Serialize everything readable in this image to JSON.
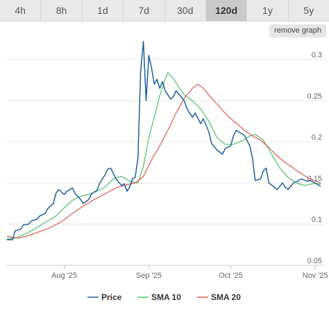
{
  "tabs": [
    {
      "label": "4h",
      "active": false
    },
    {
      "label": "8h",
      "active": false
    },
    {
      "label": "1d",
      "active": false
    },
    {
      "label": "7d",
      "active": false
    },
    {
      "label": "30d",
      "active": false
    },
    {
      "label": "120d",
      "active": true
    },
    {
      "label": "1y",
      "active": false
    },
    {
      "label": "5y",
      "active": false
    }
  ],
  "remove_graph_label": "remove graph",
  "chart_data": {
    "type": "line",
    "ylim": [
      0.05,
      0.32
    ],
    "yticks": [
      0.05,
      0.1,
      0.15,
      0.2,
      0.25,
      0.3
    ],
    "ytick_labels": [
      "0.05",
      "0.1",
      "0.15",
      "0.2",
      "0.25",
      "0.3"
    ],
    "xlim": [
      "2025-07-11",
      "2025-11-04"
    ],
    "xticks": [
      "2025-08-01",
      "2025-09-01",
      "2025-10-01",
      "2025-11-01"
    ],
    "xtick_labels": [
      "Aug '25",
      "Sep '25",
      "Oct '25",
      "Nov '25"
    ],
    "grid": true,
    "legend_position": "bottom",
    "series": [
      {
        "name": "Price",
        "color": "#1f5f99",
        "points": [
          [
            "2025-07-11",
            0.081
          ],
          [
            "2025-07-13",
            0.081
          ],
          [
            "2025-07-14",
            0.092
          ],
          [
            "2025-07-16",
            0.094
          ],
          [
            "2025-07-17",
            0.099
          ],
          [
            "2025-07-19",
            0.1
          ],
          [
            "2025-07-20",
            0.104
          ],
          [
            "2025-07-22",
            0.106
          ],
          [
            "2025-07-23",
            0.11
          ],
          [
            "2025-07-25",
            0.113
          ],
          [
            "2025-07-26",
            0.119
          ],
          [
            "2025-07-28",
            0.125
          ],
          [
            "2025-07-29",
            0.138
          ],
          [
            "2025-07-30",
            0.142
          ],
          [
            "2025-08-01",
            0.136
          ],
          [
            "2025-08-02",
            0.14
          ],
          [
            "2025-08-04",
            0.144
          ],
          [
            "2025-08-05",
            0.137
          ],
          [
            "2025-08-07",
            0.13
          ],
          [
            "2025-08-08",
            0.125
          ],
          [
            "2025-08-10",
            0.13
          ],
          [
            "2025-08-11",
            0.137
          ],
          [
            "2025-08-13",
            0.141
          ],
          [
            "2025-08-14",
            0.15
          ],
          [
            "2025-08-16",
            0.16
          ],
          [
            "2025-08-17",
            0.167
          ],
          [
            "2025-08-18",
            0.168
          ],
          [
            "2025-08-20",
            0.155
          ],
          [
            "2025-08-22",
            0.147
          ],
          [
            "2025-08-23",
            0.149
          ],
          [
            "2025-08-24",
            0.14
          ],
          [
            "2025-08-25",
            0.145
          ],
          [
            "2025-08-26",
            0.155
          ],
          [
            "2025-08-27",
            0.157
          ],
          [
            "2025-08-28",
            0.18
          ],
          [
            "2025-08-29",
            0.285
          ],
          [
            "2025-08-30",
            0.322
          ],
          [
            "2025-08-31",
            0.25
          ],
          [
            "2025-09-01",
            0.305
          ],
          [
            "2025-09-02",
            0.29
          ],
          [
            "2025-09-03",
            0.27
          ],
          [
            "2025-09-04",
            0.276
          ],
          [
            "2025-09-05",
            0.265
          ],
          [
            "2025-09-06",
            0.273
          ],
          [
            "2025-09-07",
            0.262
          ],
          [
            "2025-09-09",
            0.252
          ],
          [
            "2025-09-10",
            0.255
          ],
          [
            "2025-09-11",
            0.262
          ],
          [
            "2025-09-12",
            0.258
          ],
          [
            "2025-09-14",
            0.25
          ],
          [
            "2025-09-15",
            0.24
          ],
          [
            "2025-09-17",
            0.23
          ],
          [
            "2025-09-18",
            0.235
          ],
          [
            "2025-09-20",
            0.222
          ],
          [
            "2025-09-21",
            0.228
          ],
          [
            "2025-09-23",
            0.212
          ],
          [
            "2025-09-24",
            0.198
          ],
          [
            "2025-09-26",
            0.19
          ],
          [
            "2025-09-28",
            0.185
          ],
          [
            "2025-09-29",
            0.192
          ],
          [
            "2025-10-01",
            0.195
          ],
          [
            "2025-10-02",
            0.207
          ],
          [
            "2025-10-03",
            0.214
          ],
          [
            "2025-10-05",
            0.21
          ],
          [
            "2025-10-06",
            0.208
          ],
          [
            "2025-10-08",
            0.195
          ],
          [
            "2025-10-09",
            0.18
          ],
          [
            "2025-10-10",
            0.153
          ],
          [
            "2025-10-12",
            0.155
          ],
          [
            "2025-10-13",
            0.165
          ],
          [
            "2025-10-14",
            0.168
          ],
          [
            "2025-10-15",
            0.15
          ],
          [
            "2025-10-17",
            0.145
          ],
          [
            "2025-10-18",
            0.142
          ],
          [
            "2025-10-20",
            0.15
          ],
          [
            "2025-10-21",
            0.145
          ],
          [
            "2025-10-22",
            0.142
          ],
          [
            "2025-10-24",
            0.15
          ],
          [
            "2025-10-26",
            0.153
          ],
          [
            "2025-10-27",
            0.155
          ],
          [
            "2025-10-29",
            0.152
          ],
          [
            "2025-10-30",
            0.153
          ],
          [
            "2025-11-01",
            0.15
          ],
          [
            "2025-11-02",
            0.148
          ],
          [
            "2025-11-03",
            0.146
          ]
        ]
      },
      {
        "name": "SMA 10",
        "color": "#4cbf6a",
        "points": [
          [
            "2025-07-11",
            0.082
          ],
          [
            "2025-07-14",
            0.083
          ],
          [
            "2025-07-17",
            0.087
          ],
          [
            "2025-07-20",
            0.092
          ],
          [
            "2025-07-23",
            0.098
          ],
          [
            "2025-07-26",
            0.104
          ],
          [
            "2025-07-29",
            0.11
          ],
          [
            "2025-08-01",
            0.12
          ],
          [
            "2025-08-04",
            0.129
          ],
          [
            "2025-08-07",
            0.134
          ],
          [
            "2025-08-10",
            0.136
          ],
          [
            "2025-08-13",
            0.14
          ],
          [
            "2025-08-16",
            0.145
          ],
          [
            "2025-08-19",
            0.155
          ],
          [
            "2025-08-22",
            0.158
          ],
          [
            "2025-08-25",
            0.152
          ],
          [
            "2025-08-28",
            0.15
          ],
          [
            "2025-08-30",
            0.17
          ],
          [
            "2025-09-01",
            0.205
          ],
          [
            "2025-09-03",
            0.23
          ],
          [
            "2025-09-05",
            0.256
          ],
          [
            "2025-09-07",
            0.276
          ],
          [
            "2025-09-08",
            0.284
          ],
          [
            "2025-09-10",
            0.277
          ],
          [
            "2025-09-12",
            0.266
          ],
          [
            "2025-09-14",
            0.257
          ],
          [
            "2025-09-17",
            0.25
          ],
          [
            "2025-09-20",
            0.24
          ],
          [
            "2025-09-23",
            0.225
          ],
          [
            "2025-09-26",
            0.205
          ],
          [
            "2025-09-29",
            0.197
          ],
          [
            "2025-10-02",
            0.197
          ],
          [
            "2025-10-05",
            0.201
          ],
          [
            "2025-10-08",
            0.207
          ],
          [
            "2025-10-10",
            0.209
          ],
          [
            "2025-10-13",
            0.202
          ],
          [
            "2025-10-16",
            0.185
          ],
          [
            "2025-10-19",
            0.168
          ],
          [
            "2025-10-22",
            0.157
          ],
          [
            "2025-10-25",
            0.15
          ],
          [
            "2025-10-28",
            0.147
          ],
          [
            "2025-10-31",
            0.149
          ],
          [
            "2025-11-03",
            0.149
          ]
        ]
      },
      {
        "name": "SMA 20",
        "color": "#e0564e",
        "points": [
          [
            "2025-07-11",
            0.085
          ],
          [
            "2025-07-15",
            0.083
          ],
          [
            "2025-07-19",
            0.086
          ],
          [
            "2025-07-23",
            0.091
          ],
          [
            "2025-07-27",
            0.096
          ],
          [
            "2025-07-31",
            0.103
          ],
          [
            "2025-08-04",
            0.113
          ],
          [
            "2025-08-08",
            0.122
          ],
          [
            "2025-08-12",
            0.13
          ],
          [
            "2025-08-16",
            0.137
          ],
          [
            "2025-08-20",
            0.144
          ],
          [
            "2025-08-24",
            0.148
          ],
          [
            "2025-08-27",
            0.15
          ],
          [
            "2025-08-30",
            0.158
          ],
          [
            "2025-09-02",
            0.178
          ],
          [
            "2025-09-05",
            0.195
          ],
          [
            "2025-09-08",
            0.214
          ],
          [
            "2025-09-11",
            0.235
          ],
          [
            "2025-09-14",
            0.253
          ],
          [
            "2025-09-17",
            0.265
          ],
          [
            "2025-09-19",
            0.27
          ],
          [
            "2025-09-21",
            0.265
          ],
          [
            "2025-09-24",
            0.253
          ],
          [
            "2025-09-27",
            0.242
          ],
          [
            "2025-09-30",
            0.231
          ],
          [
            "2025-10-03",
            0.223
          ],
          [
            "2025-10-06",
            0.214
          ],
          [
            "2025-10-09",
            0.207
          ],
          [
            "2025-10-12",
            0.202
          ],
          [
            "2025-10-15",
            0.193
          ],
          [
            "2025-10-18",
            0.183
          ],
          [
            "2025-10-21",
            0.175
          ],
          [
            "2025-10-24",
            0.168
          ],
          [
            "2025-10-27",
            0.161
          ],
          [
            "2025-10-30",
            0.155
          ],
          [
            "2025-11-03",
            0.15
          ]
        ]
      }
    ]
  }
}
